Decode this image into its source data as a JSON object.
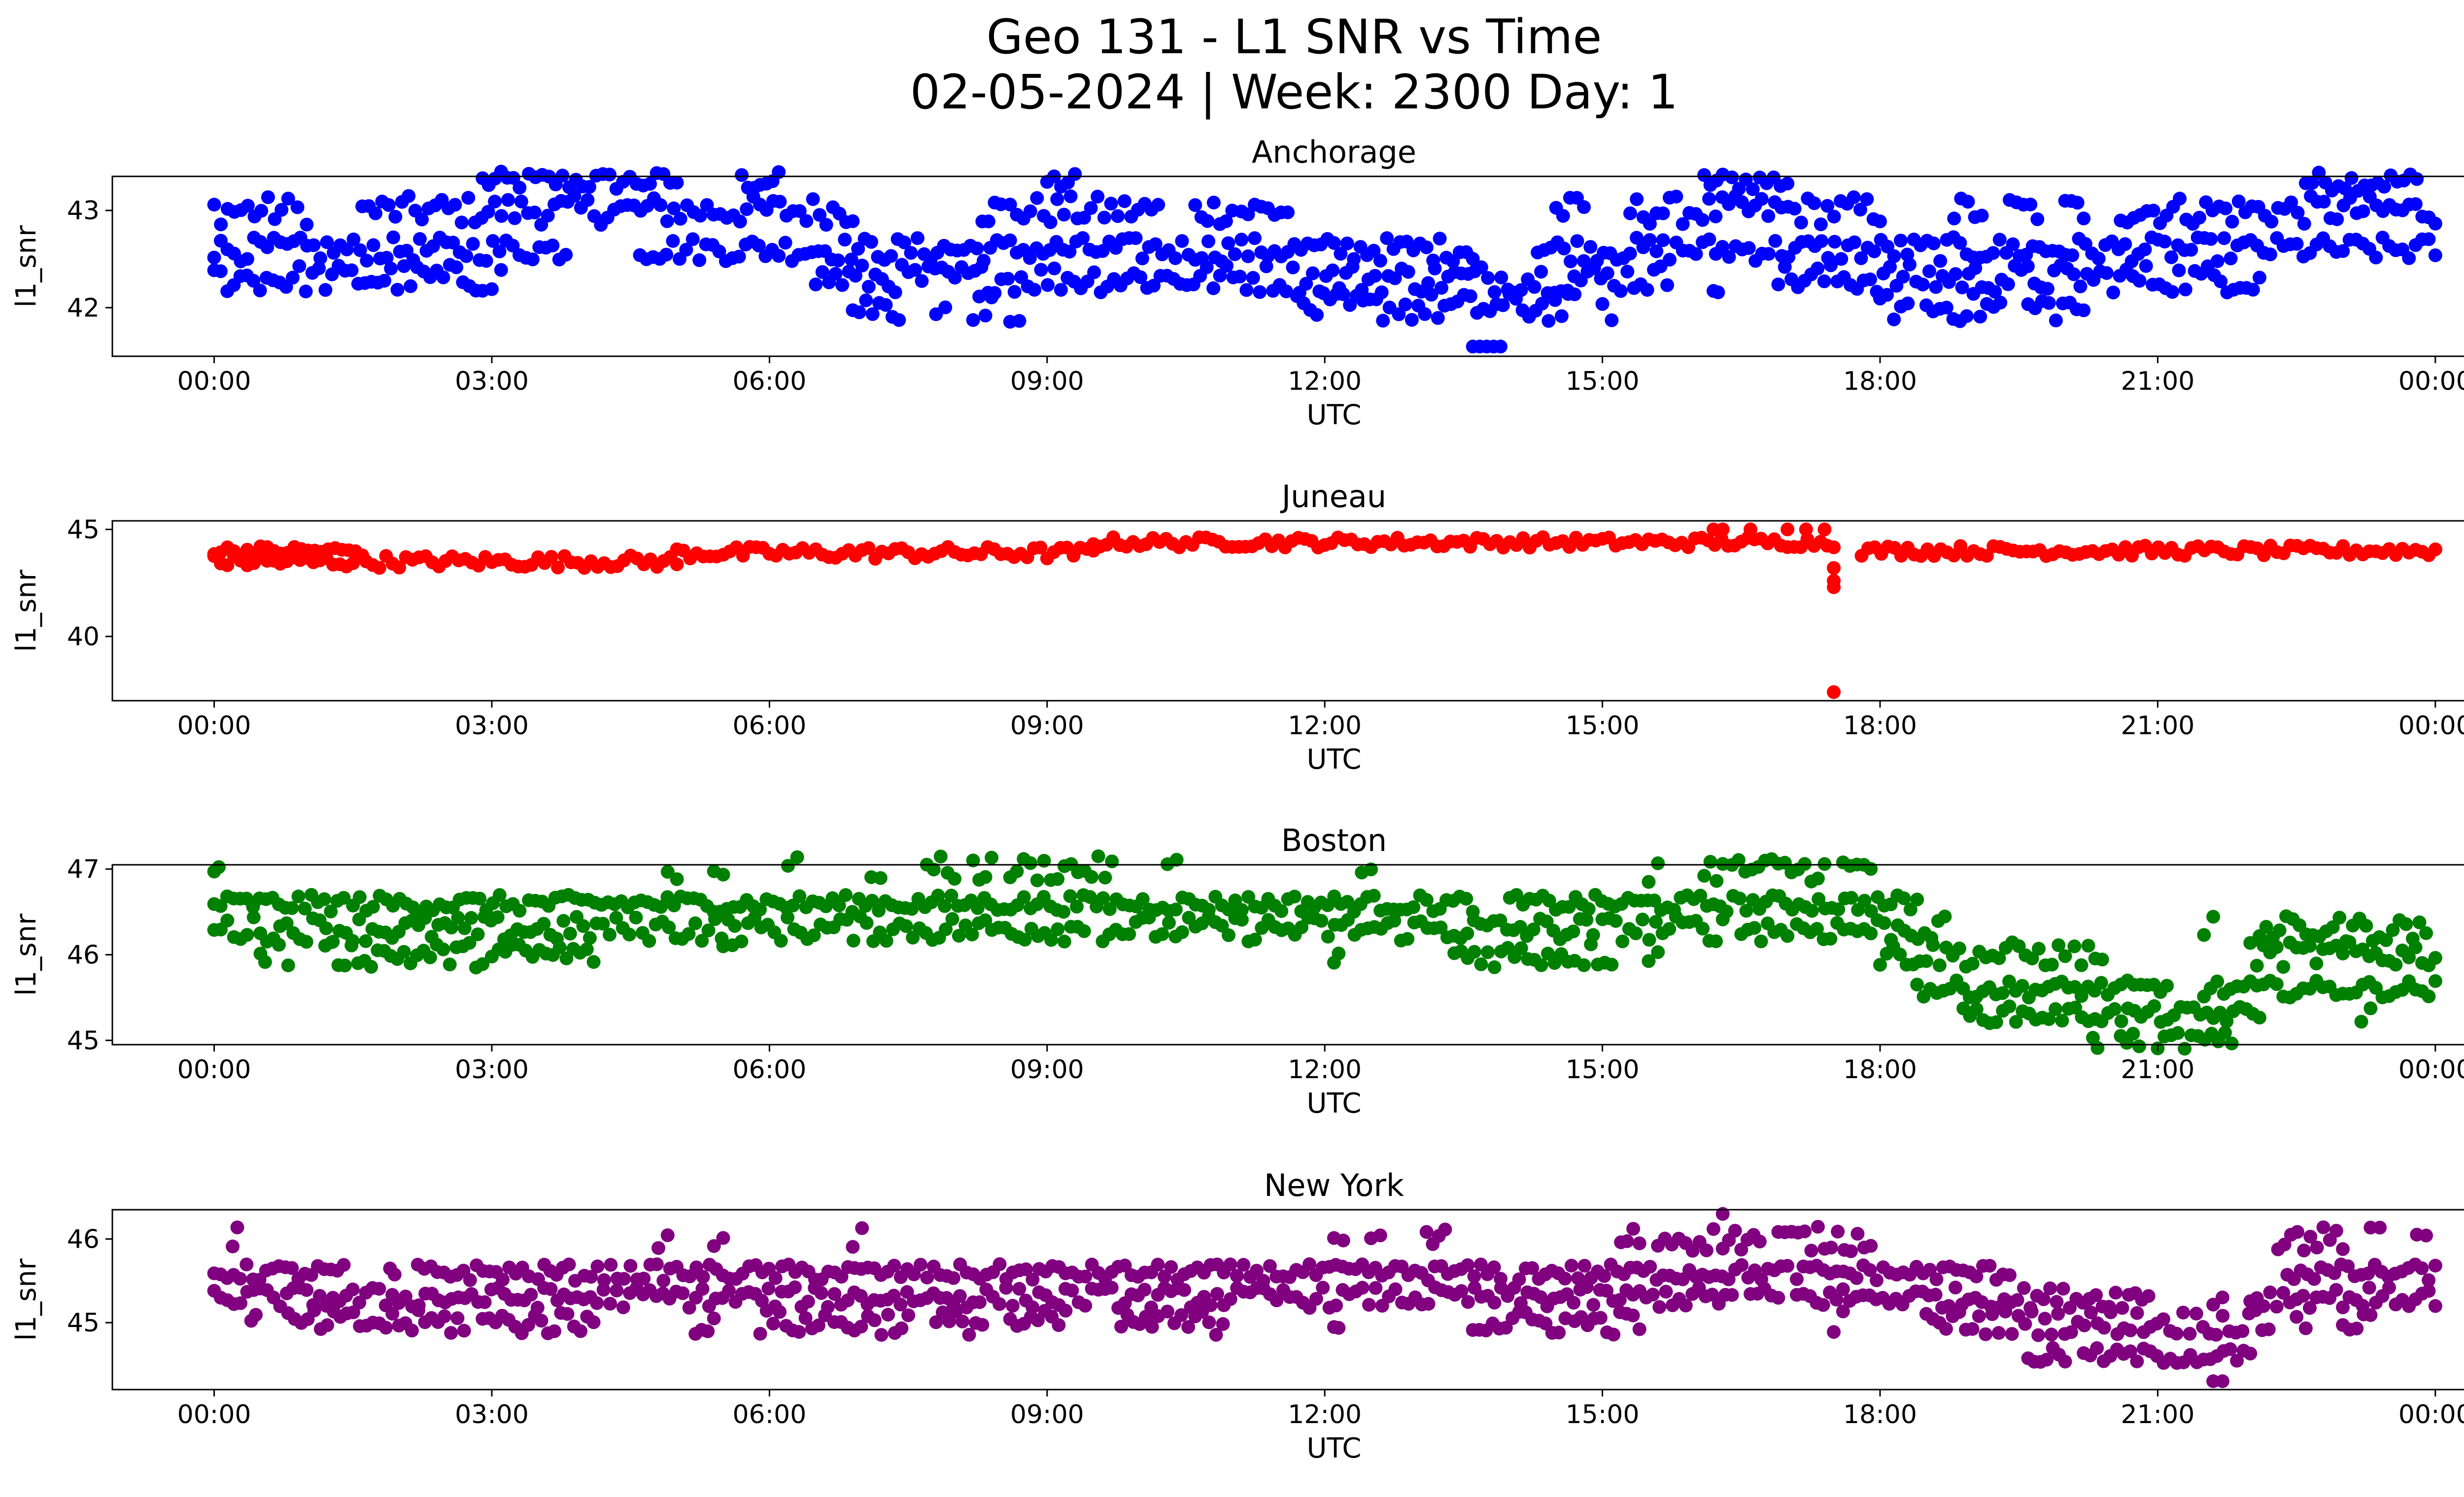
{
  "figure": {
    "title_line1": "Geo 131 - L1 SNR vs Time",
    "title_line2": "02-05-2024 | Week: 2300 Day: 1"
  },
  "chart_data": [
    {
      "type": "scatter",
      "title": "Anchorage",
      "xlabel": "UTC",
      "ylabel": "l1_snr",
      "color": "#0000ff",
      "x_range_hours": [
        0,
        24
      ],
      "xlim_hours": [
        -1.1,
        25.3
      ],
      "ylim": [
        41.5,
        43.35
      ],
      "x_ticks": [
        "00:00",
        "03:00",
        "06:00",
        "09:00",
        "12:00",
        "15:00",
        "18:00",
        "21:00",
        "00:00"
      ],
      "y_ticks": [
        42,
        43
      ],
      "levels": [
        {
          "y": 43.3,
          "spans": [
            [
              2.9,
              3.3
            ],
            [
              3.4,
              5.0
            ],
            [
              5.7,
              6.1
            ],
            [
              9.0,
              9.3
            ],
            [
              16.1,
              16.3
            ],
            [
              16.4,
              17.0
            ],
            [
              22.6,
              23.8
            ]
          ],
          "scatter": 0.2
        },
        {
          "y": 43.0,
          "spans": [
            [
              0.0,
              0.8
            ],
            [
              0.9,
              1.0
            ],
            [
              1.6,
              6.9
            ],
            [
              8.3,
              8.5
            ],
            [
              8.6,
              10.2
            ],
            [
              10.6,
              11.0
            ],
            [
              11.1,
              11.6
            ],
            [
              14.5,
              14.8
            ],
            [
              15.3,
              18.0
            ],
            [
              18.8,
              19.1
            ],
            [
              19.4,
              19.7
            ],
            [
              20.0,
              20.2
            ],
            [
              20.6,
              24.0
            ]
          ],
          "scatter": 0.3
        },
        {
          "y": 42.6,
          "spans": [
            [
              0.0,
              3.8
            ],
            [
              4.6,
              13.6
            ],
            [
              14.3,
              24.0
            ]
          ],
          "scatter": 0.25
        },
        {
          "y": 42.3,
          "spans": [
            [
              0.0,
              2.9
            ],
            [
              3.0,
              3.1
            ],
            [
              6.5,
              12.3
            ],
            [
              12.4,
              15.7
            ],
            [
              16.2,
              16.25
            ],
            [
              16.9,
              21.3
            ],
            [
              21.4,
              22.1
            ]
          ],
          "scatter": 0.3
        },
        {
          "y": 42.0,
          "spans": [
            [
              6.9,
              7.4
            ],
            [
              7.8,
              7.9
            ],
            [
              8.2,
              8.4
            ],
            [
              8.6,
              8.7
            ],
            [
              11.7,
              12.7
            ],
            [
              12.8,
              14.7
            ],
            [
              15.0,
              15.1
            ],
            [
              18.0,
              18.3
            ],
            [
              18.5,
              19.3
            ],
            [
              19.6,
              20.2
            ]
          ],
          "scatter": 0.3
        },
        {
          "y": 41.6,
          "spans": [
            [
              13.6,
              13.9
            ]
          ],
          "scatter": 0.0
        }
      ]
    },
    {
      "type": "scatter",
      "title": "Juneau",
      "xlabel": "UTC",
      "ylabel": "l1_snr",
      "color": "#ff0000",
      "x_range_hours": [
        0,
        24
      ],
      "xlim_hours": [
        -1.1,
        25.3
      ],
      "ylim": [
        37,
        45.4
      ],
      "x_ticks": [
        "00:00",
        "03:00",
        "06:00",
        "09:00",
        "12:00",
        "15:00",
        "18:00",
        "21:00",
        "00:00"
      ],
      "y_ticks": [
        40,
        45
      ],
      "levels": [
        {
          "y": 44.0,
          "spans": [
            [
              0.0,
              0.5
            ],
            [
              0.5,
              1.6
            ]
          ],
          "scatter": 0.5
        },
        {
          "y": 43.5,
          "spans": [
            [
              0.0,
              5.0
            ]
          ],
          "scatter": 0.6
        },
        {
          "y": 43.9,
          "spans": [
            [
              5.0,
              9.5
            ]
          ],
          "scatter": 0.6
        },
        {
          "y": 44.4,
          "spans": [
            [
              9.5,
              17.5
            ]
          ],
          "scatter": 0.5
        },
        {
          "y": 44.0,
          "spans": [
            [
              17.8,
              24.0
            ]
          ],
          "scatter": 0.5
        }
      ],
      "outliers": [
        {
          "x": 16.2,
          "y": 45.0
        },
        {
          "x": 16.3,
          "y": 45.0
        },
        {
          "x": 16.6,
          "y": 45.0
        },
        {
          "x": 17.0,
          "y": 45.0
        },
        {
          "x": 17.2,
          "y": 45.0
        },
        {
          "x": 17.4,
          "y": 45.0
        },
        {
          "x": 17.5,
          "y": 43.2
        },
        {
          "x": 17.5,
          "y": 42.6
        },
        {
          "x": 17.5,
          "y": 42.3
        },
        {
          "x": 17.5,
          "y": 37.4
        }
      ]
    },
    {
      "type": "scatter",
      "title": "Boston",
      "xlabel": "UTC",
      "ylabel": "l1_snr",
      "color": "#008000",
      "x_range_hours": [
        0,
        24
      ],
      "xlim_hours": [
        -1.1,
        25.3
      ],
      "ylim": [
        44.95,
        47.05
      ],
      "x_ticks": [
        "00:00",
        "03:00",
        "06:00",
        "09:00",
        "12:00",
        "15:00",
        "18:00",
        "21:00",
        "00:00"
      ],
      "y_ticks": [
        45,
        46,
        47
      ],
      "levels": [
        {
          "y": 47.0,
          "spans": [
            [
              0.0,
              0.05
            ],
            [
              4.9,
              5.0
            ],
            [
              5.4,
              5.5
            ],
            [
              6.2,
              6.3
            ],
            [
              7.1,
              7.2
            ],
            [
              7.7,
              8.0
            ],
            [
              8.2,
              8.4
            ],
            [
              8.6,
              9.7
            ],
            [
              10.3,
              10.4
            ],
            [
              12.4,
              12.5
            ],
            [
              15.5,
              15.6
            ],
            [
              16.1,
              16.3
            ],
            [
              16.4,
              17.4
            ],
            [
              17.6,
              17.9
            ]
          ],
          "scatter": 0.3
        },
        {
          "y": 46.6,
          "spans": [
            [
              0.0,
              1.4
            ],
            [
              1.5,
              3.3
            ],
            [
              3.4,
              13.6
            ],
            [
              14.0,
              18.4
            ]
          ],
          "scatter": 0.2
        },
        {
          "y": 46.3,
          "spans": [
            [
              0.0,
              9.4
            ],
            [
              9.6,
              14.9
            ],
            [
              15.0,
              16.3
            ],
            [
              16.5,
              17.0
            ],
            [
              17.1,
              18.7
            ],
            [
              21.5,
              21.6
            ],
            [
              22.1,
              23.9
            ]
          ],
          "scatter": 0.3
        },
        {
          "y": 46.0,
          "spans": [
            [
              0.5,
              0.55
            ],
            [
              0.7,
              0.8
            ],
            [
              1.2,
              2.9
            ],
            [
              3.0,
              4.1
            ],
            [
              5.5,
              5.6
            ],
            [
              12.1,
              12.15
            ],
            [
              13.4,
              14.7
            ],
            [
              14.8,
              15.1
            ],
            [
              15.5,
              15.6
            ],
            [
              18.0,
              20.0
            ],
            [
              20.1,
              20.4
            ],
            [
              22.0,
              24.0
            ]
          ],
          "scatter": 0.3
        },
        {
          "y": 45.6,
          "spans": [
            [
              18.4,
              21.1
            ],
            [
              21.5,
              24.0
            ]
          ],
          "scatter": 0.2
        },
        {
          "y": 45.3,
          "spans": [
            [
              18.9,
              22.1
            ],
            [
              23.2,
              23.3
            ]
          ],
          "scatter": 0.2
        },
        {
          "y": 45.0,
          "spans": [
            [
              20.3,
              20.35
            ],
            [
              20.6,
              20.8
            ],
            [
              21.0,
              21.8
            ]
          ],
          "scatter": 0.2
        }
      ]
    },
    {
      "type": "scatter",
      "title": "New York",
      "xlabel": "UTC",
      "ylabel": "l1_snr",
      "color": "#800080",
      "x_range_hours": [
        0,
        24
      ],
      "xlim_hours": [
        -1.1,
        25.3
      ],
      "ylim": [
        44.2,
        46.35
      ],
      "x_ticks": [
        "00:00",
        "03:00",
        "06:00",
        "09:00",
        "12:00",
        "15:00",
        "18:00",
        "21:00",
        "00:00"
      ],
      "y_ticks": [
        45,
        46
      ],
      "levels": [
        {
          "y": 46.0,
          "spans": [
            [
              0.2,
              0.25
            ],
            [
              4.8,
              4.9
            ],
            [
              5.4,
              5.5
            ],
            [
              6.9,
              7.0
            ],
            [
              12.1,
              12.2
            ],
            [
              12.5,
              12.6
            ],
            [
              13.1,
              13.3
            ],
            [
              15.2,
              15.4
            ],
            [
              15.6,
              16.2
            ],
            [
              16.3,
              16.7
            ],
            [
              16.9,
              17.9
            ],
            [
              22.3,
              23.0
            ],
            [
              23.3,
              23.4
            ],
            [
              23.8,
              23.9
            ]
          ],
          "scatter": 0.3
        },
        {
          "y": 45.6,
          "spans": [
            [
              0.0,
              1.4
            ],
            [
              1.9,
              1.95
            ],
            [
              2.2,
              3.4
            ],
            [
              3.5,
              3.9
            ],
            [
              4.0,
              13.9
            ],
            [
              14.1,
              17.0
            ],
            [
              17.1,
              19.4
            ],
            [
              22.4,
              24.0
            ]
          ],
          "scatter": 0.2
        },
        {
          "y": 45.3,
          "spans": [
            [
              0.0,
              16.4
            ],
            [
              16.6,
              16.9
            ],
            [
              17.1,
              19.1
            ],
            [
              19.2,
              20.9
            ],
            [
              21.6,
              21.7
            ],
            [
              22.0,
              24.0
            ]
          ],
          "scatter": 0.25
        },
        {
          "y": 45.0,
          "spans": [
            [
              0.4,
              0.45
            ],
            [
              0.8,
              2.7
            ],
            [
              2.9,
              4.1
            ],
            [
              5.2,
              5.4
            ],
            [
              5.9,
              6.6
            ],
            [
              6.7,
              7.5
            ],
            [
              7.8,
              8.3
            ],
            [
              8.6,
              9.2
            ],
            [
              9.8,
              10.2
            ],
            [
              10.3,
              10.9
            ],
            [
              12.1,
              12.15
            ],
            [
              13.6,
              14.6
            ],
            [
              14.7,
              15.4
            ],
            [
              17.5,
              17.6
            ],
            [
              18.5,
              22.2
            ],
            [
              22.5,
              22.6
            ],
            [
              23.0,
              23.3
            ]
          ],
          "scatter": 0.3
        },
        {
          "y": 44.6,
          "spans": [
            [
              19.6,
              20.0
            ],
            [
              20.2,
              22.0
            ]
          ],
          "scatter": 0.2
        },
        {
          "y": 44.3,
          "spans": [
            [
              21.6,
              21.7
            ]
          ],
          "scatter": 0.0
        }
      ],
      "outliers": [
        {
          "x": 16.3,
          "y": 46.3
        }
      ]
    }
  ]
}
